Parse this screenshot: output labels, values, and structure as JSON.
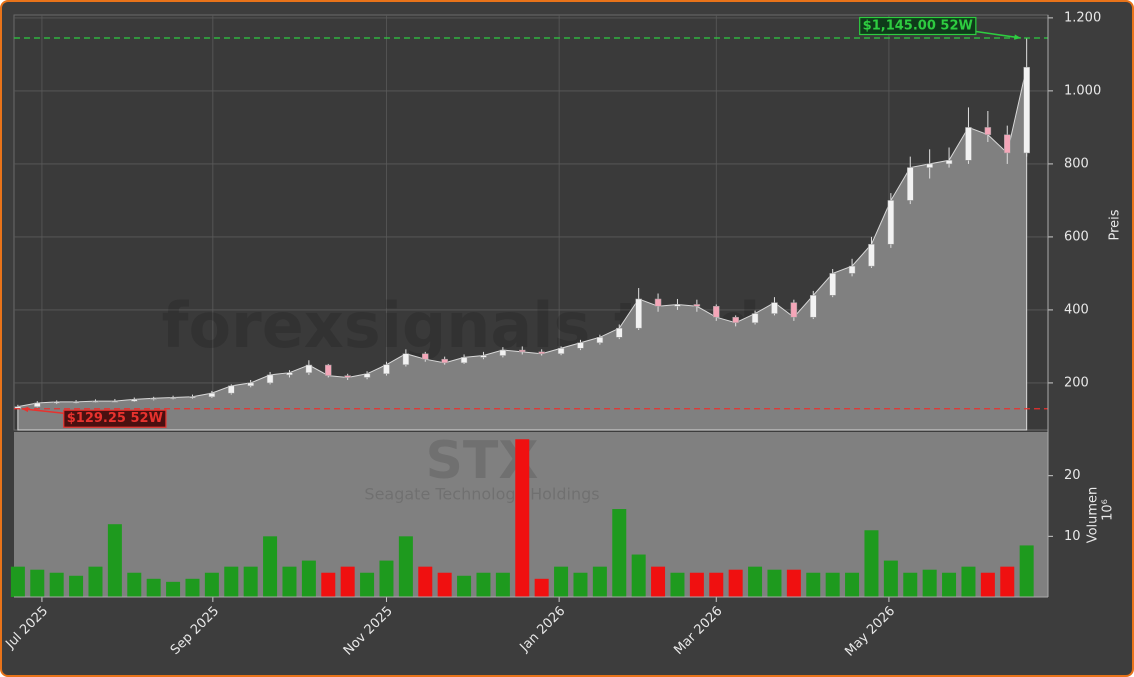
{
  "chart_data": [
    {
      "type": "candlestick",
      "ylabel": "Preis",
      "watermark": "forexsignals.trade",
      "x": [
        0,
        1,
        2,
        3,
        4,
        5,
        6,
        7,
        8,
        9,
        10,
        11,
        12,
        13,
        14,
        15,
        16,
        17,
        18,
        19,
        20,
        21,
        22,
        23,
        24,
        25,
        26,
        27,
        28,
        29,
        30,
        31,
        32,
        33,
        34,
        35,
        36,
        37,
        38,
        39,
        40,
        41,
        42,
        43,
        44,
        45,
        46,
        47,
        48,
        49,
        50,
        51,
        52
      ],
      "open": [
        130,
        135,
        145,
        148,
        148,
        150,
        150,
        155,
        158,
        160,
        162,
        172,
        192,
        200,
        222,
        228,
        249,
        220,
        215,
        225,
        250,
        280,
        265,
        255,
        270,
        275,
        290,
        285,
        280,
        295,
        310,
        325,
        350,
        430,
        410,
        415,
        410,
        380,
        365,
        390,
        420,
        380,
        440,
        500,
        520,
        580,
        700,
        790,
        800,
        810,
        900,
        880,
        830
      ],
      "high": [
        140,
        150,
        152,
        153,
        155,
        156,
        160,
        162,
        165,
        168,
        178,
        196,
        208,
        230,
        235,
        262,
        252,
        225,
        232,
        258,
        292,
        285,
        272,
        278,
        285,
        298,
        300,
        292,
        300,
        318,
        332,
        360,
        460,
        445,
        430,
        428,
        415,
        385,
        398,
        435,
        428,
        452,
        512,
        540,
        600,
        720,
        820,
        840,
        845,
        955,
        945,
        905,
        1145
      ],
      "low": [
        129.25,
        133,
        142,
        144,
        146,
        147,
        148,
        152,
        155,
        157,
        159,
        168,
        188,
        196,
        215,
        222,
        215,
        208,
        210,
        220,
        245,
        258,
        250,
        252,
        265,
        270,
        278,
        275,
        276,
        290,
        305,
        320,
        345,
        395,
        400,
        395,
        370,
        355,
        360,
        385,
        370,
        375,
        435,
        492,
        515,
        570,
        690,
        760,
        790,
        800,
        860,
        800,
        820
      ],
      "close": [
        135,
        145,
        148,
        148,
        150,
        150,
        155,
        158,
        160,
        162,
        172,
        192,
        200,
        222,
        228,
        249,
        220,
        215,
        225,
        250,
        280,
        265,
        255,
        270,
        275,
        290,
        285,
        280,
        295,
        310,
        325,
        350,
        430,
        410,
        415,
        410,
        380,
        365,
        390,
        420,
        380,
        440,
        500,
        520,
        580,
        700,
        790,
        800,
        810,
        900,
        880,
        830,
        1065
      ],
      "xlim": [
        -0.2,
        53.1
      ],
      "ylim": [
        71,
        1208
      ],
      "yticks": [
        {
          "value": 200,
          "label": "200"
        },
        {
          "value": 400,
          "label": "400"
        },
        {
          "value": 600,
          "label": "600"
        },
        {
          "value": 800,
          "label": "800"
        },
        {
          "value": 1000,
          "label": "1.000"
        },
        {
          "value": 1200,
          "label": "1.200"
        }
      ],
      "grid": true,
      "area_color": "#808080",
      "up_color": "#f2f2f2",
      "down_color": "#f4a6b8",
      "annotations": [
        {
          "label": "$1,145.00 52W",
          "value": 1145,
          "x": 51.7,
          "position": "left",
          "color": "#2ecc40"
        },
        {
          "label": "$129.25 52W",
          "value": 129.25,
          "x": 0.2,
          "position": "right",
          "color": "#e8322e"
        }
      ]
    },
    {
      "type": "bar",
      "ylabel": "Volumen",
      "unit": "10⁶",
      "symbol": "STX",
      "company": "Seagate Technology Holdings",
      "x": [
        0,
        1,
        2,
        3,
        4,
        5,
        6,
        7,
        8,
        9,
        10,
        11,
        12,
        13,
        14,
        15,
        16,
        17,
        18,
        19,
        20,
        21,
        22,
        23,
        24,
        25,
        26,
        27,
        28,
        29,
        30,
        31,
        32,
        33,
        34,
        35,
        36,
        37,
        38,
        39,
        40,
        41,
        42,
        43,
        44,
        45,
        46,
        47,
        48,
        49,
        50,
        51,
        52
      ],
      "values": [
        5,
        4.5,
        4,
        3.5,
        5,
        12,
        4,
        3,
        2.5,
        3,
        4,
        5,
        5,
        10,
        5,
        6,
        4,
        5,
        4,
        6,
        10,
        5,
        4,
        3.5,
        4,
        4,
        26,
        3,
        5,
        4,
        5,
        14.5,
        7,
        5,
        4,
        4,
        4,
        4.5,
        5,
        4.5,
        4.5,
        4,
        4,
        4,
        11,
        6,
        4,
        4.5,
        4,
        5,
        4,
        5,
        8.5
      ],
      "xlim": [
        -0.2,
        53.1
      ],
      "ylim": [
        0,
        27.2
      ],
      "yticks": [
        10,
        20
      ],
      "xticks": [
        {
          "value": 1.24,
          "label": "Jul 2025"
        },
        {
          "value": 10.05,
          "label": "Sep 2025"
        },
        {
          "value": 19.0,
          "label": "Nov 2025"
        },
        {
          "value": 27.9,
          "label": "Jan 2026"
        },
        {
          "value": 36.0,
          "label": "Mar 2026"
        },
        {
          "value": 44.9,
          "label": "May 2026"
        }
      ],
      "up_color": "#1e9a1e",
      "down_color": "#f01010",
      "background": "#808080"
    }
  ]
}
